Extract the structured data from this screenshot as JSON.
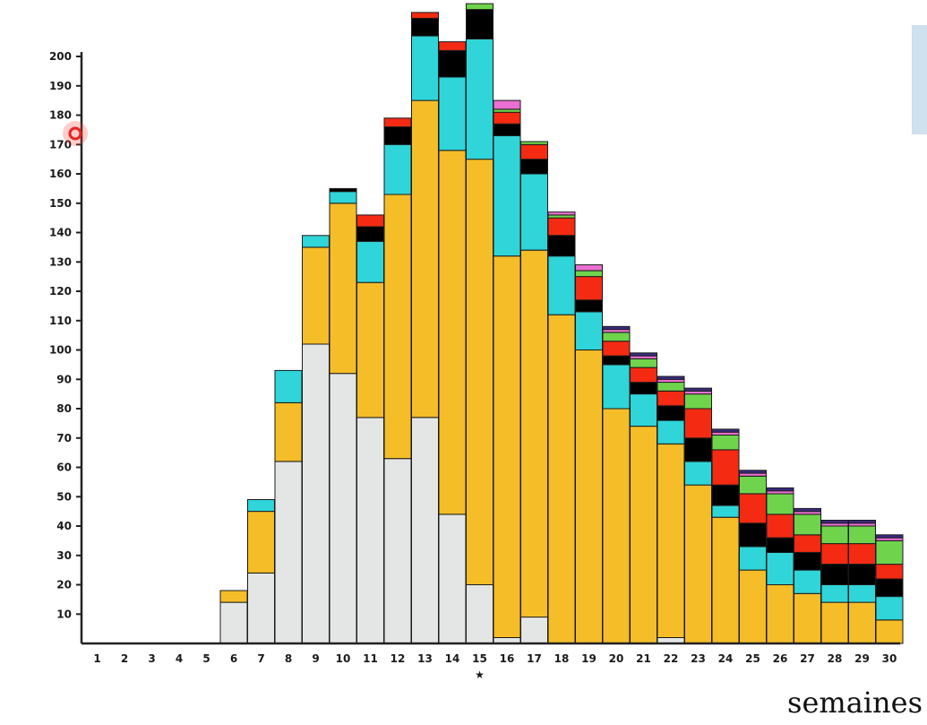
{
  "chart_data": {
    "type": "bar",
    "stacked": true,
    "title": "",
    "xlabel": "semaines",
    "ylabel": "",
    "ylim": [
      0,
      210
    ],
    "yticks": [
      10,
      20,
      30,
      40,
      50,
      60,
      70,
      80,
      90,
      100,
      110,
      120,
      130,
      140,
      150,
      160,
      170,
      180,
      190,
      200
    ],
    "categories": [
      "1",
      "2",
      "3",
      "4",
      "5",
      "6",
      "7",
      "8",
      "9",
      "10",
      "11",
      "12",
      "13",
      "14",
      "15",
      "16",
      "17",
      "18",
      "19",
      "20",
      "21",
      "22",
      "23",
      "24",
      "25",
      "26",
      "27",
      "28",
      "29",
      "30"
    ],
    "marked_category": "15",
    "marker_symbol": "★",
    "grid": false,
    "legend": "none",
    "series": [
      {
        "color": "#e4e6e6",
        "values": [
          0,
          0,
          0,
          0,
          0,
          14,
          24,
          62,
          102,
          92,
          77,
          63,
          77,
          44,
          20,
          2,
          9,
          0,
          0,
          0,
          0,
          2,
          0,
          0,
          0,
          0,
          0,
          0,
          0,
          0
        ]
      },
      {
        "color": "#f5bd27",
        "values": [
          0,
          0,
          0,
          0,
          0,
          4,
          21,
          20,
          33,
          58,
          46,
          90,
          108,
          124,
          145,
          130,
          125,
          112,
          100,
          80,
          74,
          66,
          54,
          43,
          25,
          20,
          17,
          14,
          14,
          8
        ]
      },
      {
        "color": "#2fd5d8",
        "values": [
          0,
          0,
          0,
          0,
          0,
          0,
          4,
          11,
          4,
          4,
          14,
          17,
          22,
          25,
          41,
          41,
          26,
          20,
          13,
          15,
          11,
          8,
          8,
          4,
          8,
          11,
          8,
          6,
          6,
          8
        ]
      },
      {
        "color": "#000000",
        "values": [
          0,
          0,
          0,
          0,
          0,
          0,
          0,
          0,
          0,
          1,
          5,
          6,
          6,
          9,
          10,
          4,
          5,
          7,
          4,
          3,
          4,
          5,
          8,
          7,
          8,
          5,
          6,
          7,
          7,
          6
        ]
      },
      {
        "color": "#f42a12",
        "values": [
          0,
          0,
          0,
          0,
          0,
          0,
          0,
          0,
          0,
          0,
          4,
          3,
          2,
          3,
          0,
          4,
          5,
          6,
          8,
          5,
          5,
          5,
          10,
          12,
          10,
          8,
          6,
          7,
          7,
          5
        ]
      },
      {
        "color": "#6fd44c",
        "values": [
          0,
          0,
          0,
          0,
          0,
          0,
          0,
          0,
          0,
          0,
          0,
          0,
          0,
          0,
          2,
          1,
          1,
          1,
          2,
          3,
          3,
          3,
          5,
          5,
          6,
          7,
          7,
          6,
          6,
          8
        ]
      },
      {
        "color": "#ea6fd0",
        "values": [
          0,
          0,
          0,
          0,
          0,
          0,
          0,
          0,
          0,
          0,
          0,
          0,
          0,
          0,
          0,
          3,
          0,
          1,
          2,
          1,
          1,
          1,
          1,
          1,
          1,
          1,
          1,
          1,
          1,
          1
        ]
      },
      {
        "color": "#3b2a82",
        "values": [
          0,
          0,
          0,
          0,
          0,
          0,
          0,
          0,
          0,
          0,
          0,
          0,
          0,
          0,
          0,
          0,
          0,
          0,
          0,
          1,
          1,
          1,
          1,
          1,
          1,
          1,
          1,
          1,
          1,
          1
        ]
      }
    ]
  },
  "annotations": {
    "cursor_marker_color": "#e8231f"
  }
}
